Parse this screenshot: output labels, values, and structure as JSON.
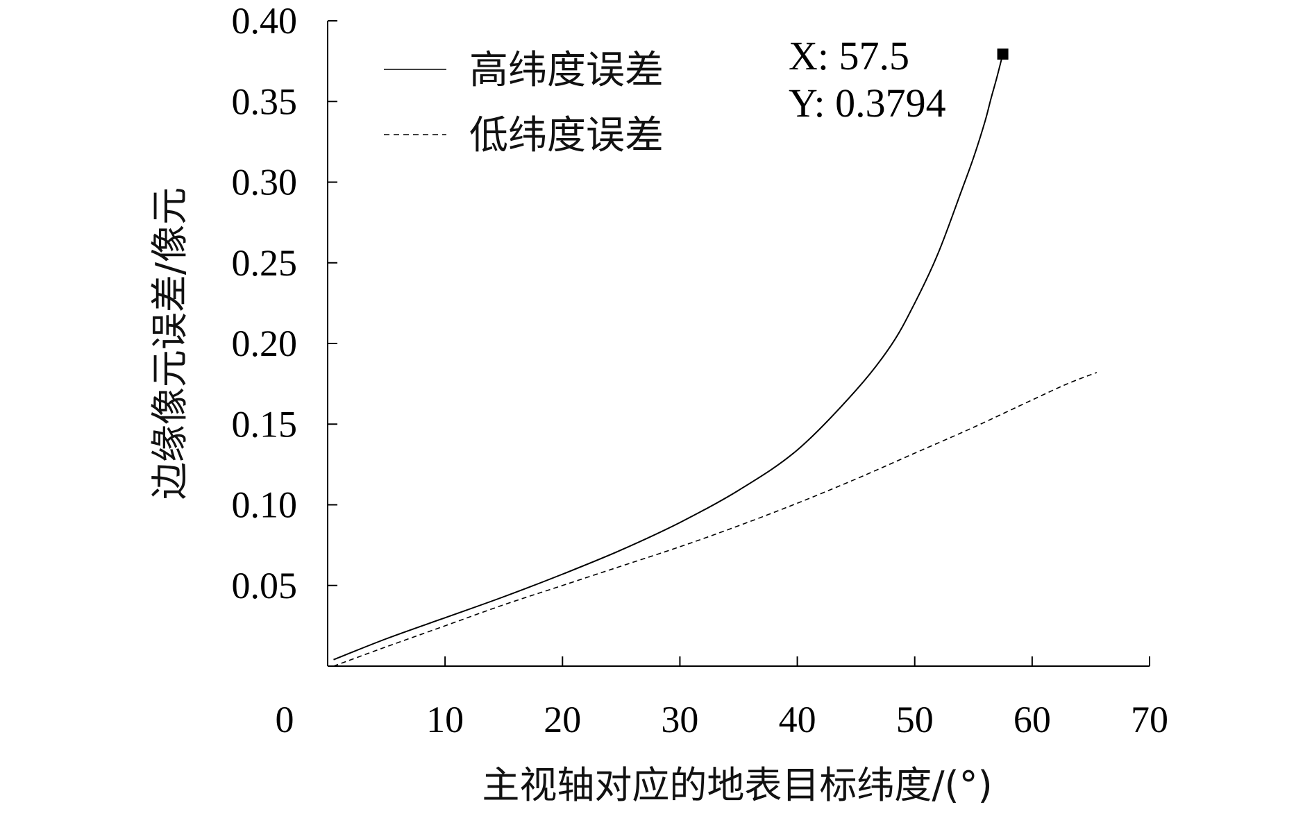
{
  "chart_data": {
    "type": "line",
    "xlabel": "主视轴对应的地表目标纬度/(°)",
    "ylabel": "边缘像元误差/像元",
    "xlim": [
      0,
      70
    ],
    "ylim": [
      0,
      0.4
    ],
    "x_ticks": [
      0,
      10,
      20,
      30,
      40,
      50,
      60,
      70
    ],
    "x_tick_labels": [
      "0",
      "10",
      "20",
      "30",
      "40",
      "50",
      "60",
      "70"
    ],
    "y_ticks": [
      0.05,
      0.1,
      0.15,
      0.2,
      0.25,
      0.3,
      0.35,
      0.4
    ],
    "y_tick_labels": [
      "0.05",
      "0.10",
      "0.15",
      "0.20",
      "0.25",
      "0.30",
      "0.35",
      "0.40"
    ],
    "grid": false,
    "legend_position": "top-left",
    "series": [
      {
        "name": "高纬度误差",
        "style": "solid",
        "color": "#000000",
        "x": [
          0.5,
          5,
          10,
          15,
          20,
          25,
          30,
          35,
          40,
          45,
          48,
          50,
          52,
          54,
          55,
          56,
          56.5,
          57,
          57.5
        ],
        "y": [
          0.004,
          0.017,
          0.03,
          0.043,
          0.057,
          0.072,
          0.089,
          0.109,
          0.134,
          0.171,
          0.199,
          0.225,
          0.256,
          0.295,
          0.315,
          0.338,
          0.352,
          0.365,
          0.3794
        ]
      },
      {
        "name": "低纬度误差",
        "style": "dashed",
        "color": "#000000",
        "x": [
          0.5,
          5,
          10,
          15,
          20,
          25,
          30,
          35,
          40,
          45,
          50,
          55,
          60,
          63,
          65.5
        ],
        "y": [
          0.0,
          0.012,
          0.025,
          0.038,
          0.05,
          0.062,
          0.074,
          0.087,
          0.101,
          0.116,
          0.132,
          0.148,
          0.165,
          0.175,
          0.182
        ]
      }
    ],
    "annotation": {
      "x_text": "X: 57.5",
      "y_text": "Y: 0.3794",
      "x": 57.5,
      "y": 0.3794
    }
  }
}
